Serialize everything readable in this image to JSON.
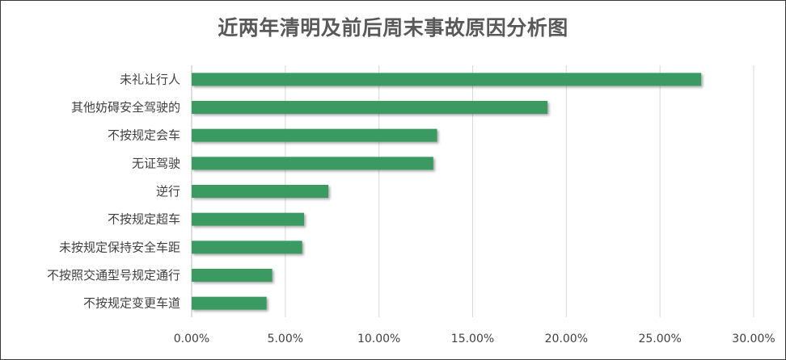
{
  "chart_data": {
    "type": "bar",
    "orientation": "horizontal",
    "title": "近两年清明及前后周末事故原因分析图",
    "categories": [
      "未礼让行人",
      "其他妨碍安全驾驶的",
      "不按规定会车",
      "无证驾驶",
      "逆行",
      "不按规定超车",
      "未按规定保持安全车距",
      "不按照交通型号规定通行",
      "不按规定变更车道"
    ],
    "values": [
      27.2,
      19.0,
      13.1,
      12.9,
      7.3,
      6.0,
      5.9,
      4.3,
      4.0
    ],
    "xlim": [
      0,
      30
    ],
    "x_ticks": [
      "0.00%",
      "5.00%",
      "10.00%",
      "15.00%",
      "20.00%",
      "25.00%",
      "30.00%"
    ],
    "bar_color": "#3a9a62",
    "grid": "vertical",
    "legend": "none"
  }
}
